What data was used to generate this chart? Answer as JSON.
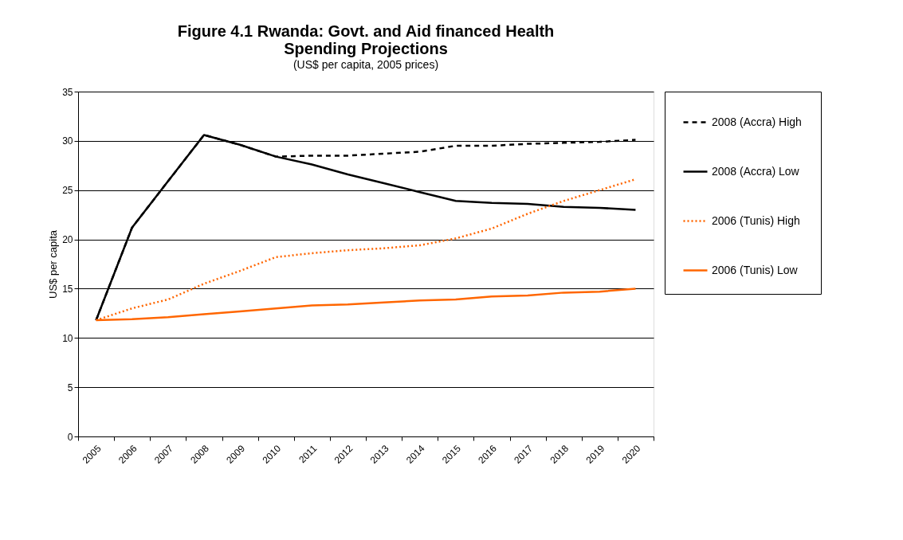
{
  "chart_data": {
    "type": "line",
    "title": "Figure 4.1 Rwanda: Govt. and Aid financed Health Spending Projections",
    "subtitle": "(US$ per capita, 2005 prices)",
    "ylabel": "US$ per capita",
    "categories": [
      "2005",
      "2006",
      "2007",
      "2008",
      "2009",
      "2010",
      "2011",
      "2012",
      "2013",
      "2014",
      "2015",
      "2016",
      "2017",
      "2018",
      "2019",
      "2020"
    ],
    "ylim": [
      0,
      35
    ],
    "yticks": [
      0,
      5,
      10,
      15,
      20,
      25,
      30,
      35
    ],
    "grid": "y",
    "legend": "right",
    "marker": "none",
    "series": [
      {
        "name": "2008 (Accra) High",
        "color": "#000000",
        "line_style": "dashed",
        "values": [
          11.8,
          21.2,
          25.9,
          30.6,
          29.6,
          28.4,
          28.5,
          28.5,
          28.7,
          28.9,
          29.5,
          29.5,
          29.7,
          29.8,
          29.9,
          30.1
        ]
      },
      {
        "name": "2008 (Accra) Low",
        "color": "#000000",
        "line_style": "solid",
        "values": [
          11.8,
          21.2,
          25.9,
          30.6,
          29.6,
          28.4,
          27.6,
          26.6,
          25.7,
          24.8,
          23.9,
          23.7,
          23.6,
          23.3,
          23.2,
          23.0
        ]
      },
      {
        "name": "2006 (Tunis)  High",
        "color": "#ff6600",
        "line_style": "dotted",
        "values": [
          11.8,
          13.0,
          13.9,
          15.5,
          16.8,
          18.2,
          18.6,
          18.9,
          19.1,
          19.4,
          20.1,
          21.1,
          22.6,
          23.9,
          25.0,
          26.1
        ]
      },
      {
        "name": "2006 (Tunis)  Low",
        "color": "#ff6600",
        "line_style": "solid",
        "values": [
          11.8,
          11.9,
          12.1,
          12.4,
          12.7,
          13.0,
          13.3,
          13.4,
          13.6,
          13.8,
          13.9,
          14.2,
          14.3,
          14.6,
          14.7,
          15.0
        ]
      }
    ]
  }
}
